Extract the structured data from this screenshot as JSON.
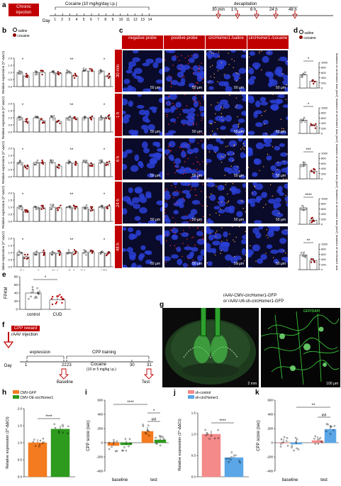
{
  "panel_letters": [
    "a",
    "b",
    "c",
    "d",
    "e",
    "f",
    "g",
    "h",
    "i",
    "j",
    "k"
  ],
  "a": {
    "box": "Chronic injection",
    "cocaine": "Cocaine (10 mg/kg/day i.p.)",
    "day": "Day",
    "days": [
      "1",
      "2",
      "3",
      "4",
      "5",
      "6",
      "7",
      "8",
      "9",
      "10",
      "11",
      "12",
      "13",
      "14"
    ],
    "decap": "decapitation",
    "timepoints": [
      "30 min",
      "1 h",
      "6 h",
      "24 h",
      "48 h"
    ]
  },
  "b": {
    "legend": [
      "saline",
      "cocaine"
    ],
    "ylabel": "Relative expression (2^-ΔΔCt)",
    "regions": [
      "PrL",
      "IL",
      "BLA",
      "CeA",
      "NAc core",
      "VTA"
    ],
    "yticks": [
      "0.0",
      "0.5",
      "1.0",
      "1.5",
      "2.0"
    ]
  },
  "c": {
    "headers": [
      "negative probe",
      "positive probe",
      "circHomer1 /saline",
      "circHomer1 /cocaine"
    ],
    "rows": [
      "30 min",
      "1 h",
      "6 h",
      "24 h",
      "48 h"
    ],
    "scale": "50 µm"
  },
  "d": {
    "legend": [
      "saline",
      "cocaine"
    ],
    "ylabel": "Numbers of circHomer1 dots (mm²)",
    "yticks": [
      "0",
      "200",
      "400",
      "600",
      "800",
      "1000"
    ],
    "sig": [
      "*",
      "*",
      "***",
      "****",
      "**"
    ]
  },
  "e": {
    "ylabel": "FPKM",
    "yticks": [
      "0",
      "20",
      "40",
      "60",
      "80"
    ],
    "categories": [
      "control",
      "CUD"
    ],
    "sig": "*"
  },
  "f": {
    "box": "CPP reward",
    "inj": "rAAV injection",
    "expression": "expression",
    "training": "CPP training",
    "cocaine": "Cocaine",
    "dose": "(10 or 5 mg/kg i.p.)",
    "day": "Day",
    "days": [
      "1",
      "22",
      "23",
      "30",
      "31"
    ],
    "baseline": "Baseline",
    "test": "Test"
  },
  "g": {
    "virus1": "rAAV-CMV-circHomer1-GFP",
    "virus2": "or rAAV-U6-sh-circHomer1-GFP",
    "label": "GFP/DAPI",
    "scale1": "2 mm",
    "scale2": "100 µm"
  },
  "h": {
    "legend": [
      "CMV-GFP",
      "CMV-OE-circHomer1"
    ],
    "ylabel": "Relative expression (2^-ΔΔCt)",
    "yticks": [
      "0.0",
      "0.5",
      "1.0",
      "1.5",
      "2.0"
    ],
    "sig": "****"
  },
  "i": {
    "ylabel": "CPP score (sec)",
    "yticks": [
      "-400",
      "-200",
      "0",
      "200",
      "400",
      "600"
    ],
    "categories": [
      "baseline",
      "test"
    ],
    "sig": [
      "****",
      "*",
      "##"
    ]
  },
  "j": {
    "legend": [
      "sh-control",
      "sh-circHomer1"
    ],
    "ylabel": "Relative expression (2^-ΔΔCt)",
    "yticks": [
      "0.0",
      "0.5",
      "1.0",
      "1.5"
    ],
    "sig": "****"
  },
  "k": {
    "ylabel": "CPP score (sec)",
    "yticks": [
      "-400",
      "-200",
      "0",
      "200",
      "400",
      "600"
    ],
    "categories": [
      "baseline",
      "test"
    ],
    "sig": [
      "**",
      "##"
    ]
  },
  "colors": {
    "red": "#c00000",
    "orange": "#f47b20",
    "green": "#2e9a1e",
    "pink": "#f48a8a",
    "blue": "#5aa6e6",
    "darkred": "#8b0000"
  },
  "chart_data": [
    {
      "panel": "b",
      "type": "bar",
      "categories": [
        "PrL",
        "IL",
        "BLA",
        "CeA",
        "NAc core",
        "VTA"
      ],
      "rows": [
        "30 min",
        "1 h",
        "6 h",
        "24 h",
        "48 h"
      ],
      "series": [
        {
          "name": "saline",
          "values": [
            [
              1.0,
              1.0,
              1.0,
              1.0,
              1.1,
              1.1
            ],
            [
              1.0,
              1.0,
              1.0,
              1.0,
              1.0,
              1.0
            ],
            [
              1.0,
              1.0,
              1.0,
              1.0,
              1.0,
              1.0
            ],
            [
              1.0,
              1.0,
              1.0,
              1.0,
              1.0,
              1.0
            ],
            [
              1.0,
              1.0,
              1.0,
              1.0,
              1.0,
              1.0
            ]
          ]
        },
        {
          "name": "cocaine",
          "values": [
            [
              0.75,
              1.0,
              0.95,
              0.75,
              1.1,
              0.75
            ],
            [
              0.75,
              0.8,
              0.75,
              1.0,
              1.0,
              1.05
            ],
            [
              0.7,
              1.0,
              0.75,
              0.95,
              0.9,
              0.95
            ],
            [
              0.7,
              0.95,
              0.95,
              0.95,
              0.85,
              1.05
            ],
            [
              0.7,
              1.0,
              0.95,
              1.05,
              1.05,
              0.95
            ]
          ]
        }
      ],
      "ylim": [
        0,
        2.0
      ]
    },
    {
      "panel": "d",
      "type": "bar",
      "categories": [
        "30 min",
        "1 h",
        "6 h",
        "24 h",
        "48 h"
      ],
      "series": [
        {
          "name": "saline",
          "values": [
            520,
            520,
            560,
            640,
            580
          ]
        },
        {
          "name": "cocaine",
          "values": [
            260,
            300,
            300,
            160,
            360
          ]
        }
      ],
      "ylim": [
        0,
        1000
      ]
    },
    {
      "panel": "e",
      "type": "bar",
      "categories": [
        "control",
        "CUD"
      ],
      "values": [
        40,
        23
      ],
      "ylim": [
        0,
        80
      ]
    },
    {
      "panel": "h",
      "type": "bar",
      "categories": [
        "CMV-GFP",
        "CMV-OE-circHomer1"
      ],
      "values": [
        1.0,
        1.4
      ],
      "ylim": [
        0,
        2.0
      ]
    },
    {
      "panel": "i",
      "type": "bar",
      "categories": [
        "baseline",
        "test"
      ],
      "series": [
        {
          "name": "CMV-GFP",
          "values": [
            -40,
            160
          ]
        },
        {
          "name": "CMV-OE-circHomer1",
          "values": [
            -30,
            40
          ]
        }
      ],
      "ylim": [
        -400,
        600
      ]
    },
    {
      "panel": "j",
      "type": "bar",
      "categories": [
        "sh-control",
        "sh-circHomer1"
      ],
      "values": [
        1.0,
        0.45
      ],
      "ylim": [
        0,
        1.5
      ]
    },
    {
      "panel": "k",
      "type": "bar",
      "categories": [
        "baseline",
        "test"
      ],
      "series": [
        {
          "name": "sh-control",
          "values": [
            -5,
            30
          ]
        },
        {
          "name": "sh-circHomer1",
          "values": [
            -20,
            190
          ]
        }
      ],
      "ylim": [
        -400,
        600
      ]
    }
  ]
}
